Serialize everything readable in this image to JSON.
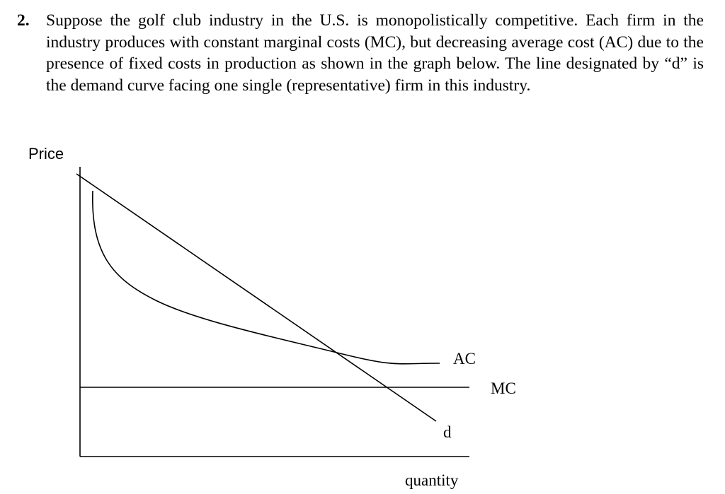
{
  "question": {
    "number": "2.",
    "text": "Suppose the golf club industry in the U.S. is monopolistically competitive. Each firm in the industry produces with constant marginal costs (MC), but decreasing average cost (AC) due to the presence of fixed costs in production as shown in the graph below. The line designated by “d” is the demand curve facing one single (representative) firm in this industry."
  },
  "chart_data": {
    "type": "line",
    "title": "",
    "ylabel": "Price",
    "xlabel": "quantity",
    "series": [
      {
        "name": "AC",
        "label": "AC",
        "shape": "decreasing convex curve that levels off"
      },
      {
        "name": "MC",
        "label": "MC",
        "shape": "horizontal line"
      },
      {
        "name": "d",
        "label": "d",
        "shape": "downward sloping straight line"
      }
    ],
    "labels": {
      "ac": "AC",
      "mc": "MC",
      "d": "d",
      "price": "Price",
      "quantity": "quantity"
    }
  }
}
